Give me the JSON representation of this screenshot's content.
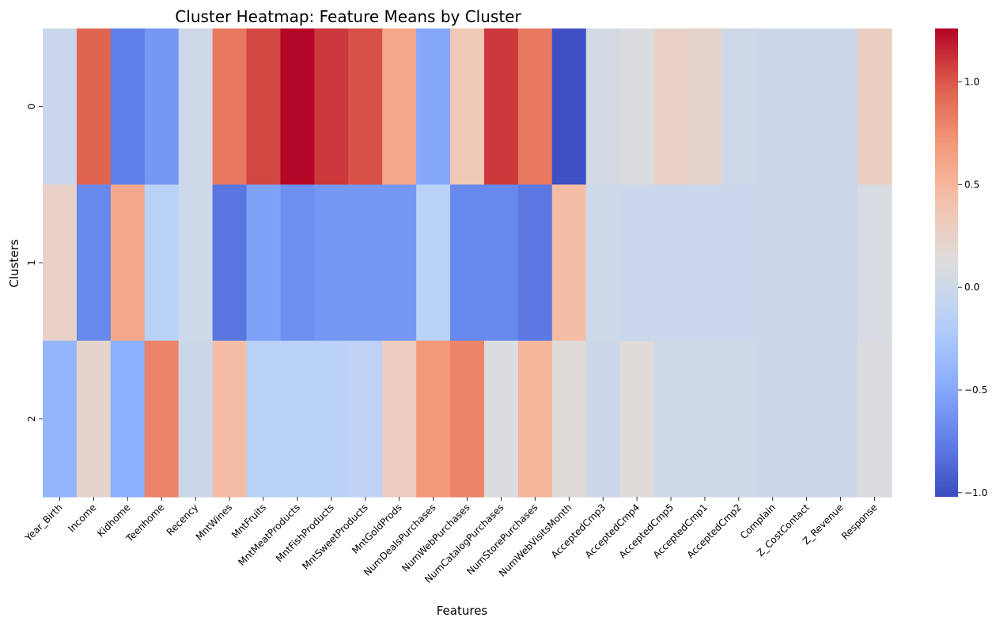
{
  "chart_data": {
    "type": "heatmap",
    "title": "Cluster Heatmap: Feature Means by Cluster",
    "xlabel": "Features",
    "ylabel": "Clusters",
    "colormap": "coolwarm",
    "vmin": -1.02,
    "vmax": 1.26,
    "colorbar_ticks": [
      "−1.0",
      "−0.5",
      "0.0",
      "0.5",
      "1.0"
    ],
    "colorbar_tick_values": [
      -1.0,
      -0.5,
      0.0,
      0.5,
      1.0
    ],
    "rows": [
      "0",
      "1",
      "2"
    ],
    "columns": [
      "Year_Birth",
      "Income",
      "Kidhome",
      "Teenhome",
      "Recency",
      "MntWines",
      "MntFruits",
      "MntMeatProducts",
      "MntFishProducts",
      "MntSweetProducts",
      "MntGoldProds",
      "NumDealsPurchases",
      "NumWebPurchases",
      "NumCatalogPurchases",
      "NumStorePurchases",
      "NumWebVisitsMonth",
      "AcceptedCmp3",
      "AcceptedCmp4",
      "AcceptedCmp5",
      "AcceptedCmp1",
      "AcceptedCmp2",
      "Complain",
      "Z_CostContact",
      "Z_Revenue",
      "Response"
    ],
    "values": [
      [
        -0.02,
        0.95,
        -0.75,
        -0.6,
        0.01,
        0.85,
        1.05,
        1.25,
        1.1,
        1.02,
        0.6,
        -0.5,
        0.35,
        1.1,
        0.85,
        -1.0,
        0.05,
        0.1,
        0.25,
        0.22,
        0.01,
        -0.01,
        -0.01,
        -0.01,
        0.28
      ],
      [
        0.25,
        -0.7,
        0.6,
        -0.15,
        0.0,
        -0.8,
        -0.55,
        -0.65,
        -0.6,
        -0.6,
        -0.6,
        -0.15,
        -0.7,
        -0.7,
        -0.78,
        0.45,
        0.0,
        -0.02,
        -0.02,
        -0.02,
        -0.02,
        -0.01,
        -0.01,
        -0.01,
        0.08
      ],
      [
        -0.4,
        0.22,
        -0.45,
        0.8,
        -0.01,
        0.45,
        -0.15,
        -0.15,
        -0.15,
        -0.12,
        0.3,
        0.7,
        0.8,
        0.1,
        0.5,
        0.15,
        -0.01,
        0.15,
        0.0,
        0.0,
        0.0,
        -0.01,
        -0.01,
        -0.01,
        0.1
      ]
    ],
    "grid": false,
    "colorbar": "right"
  }
}
